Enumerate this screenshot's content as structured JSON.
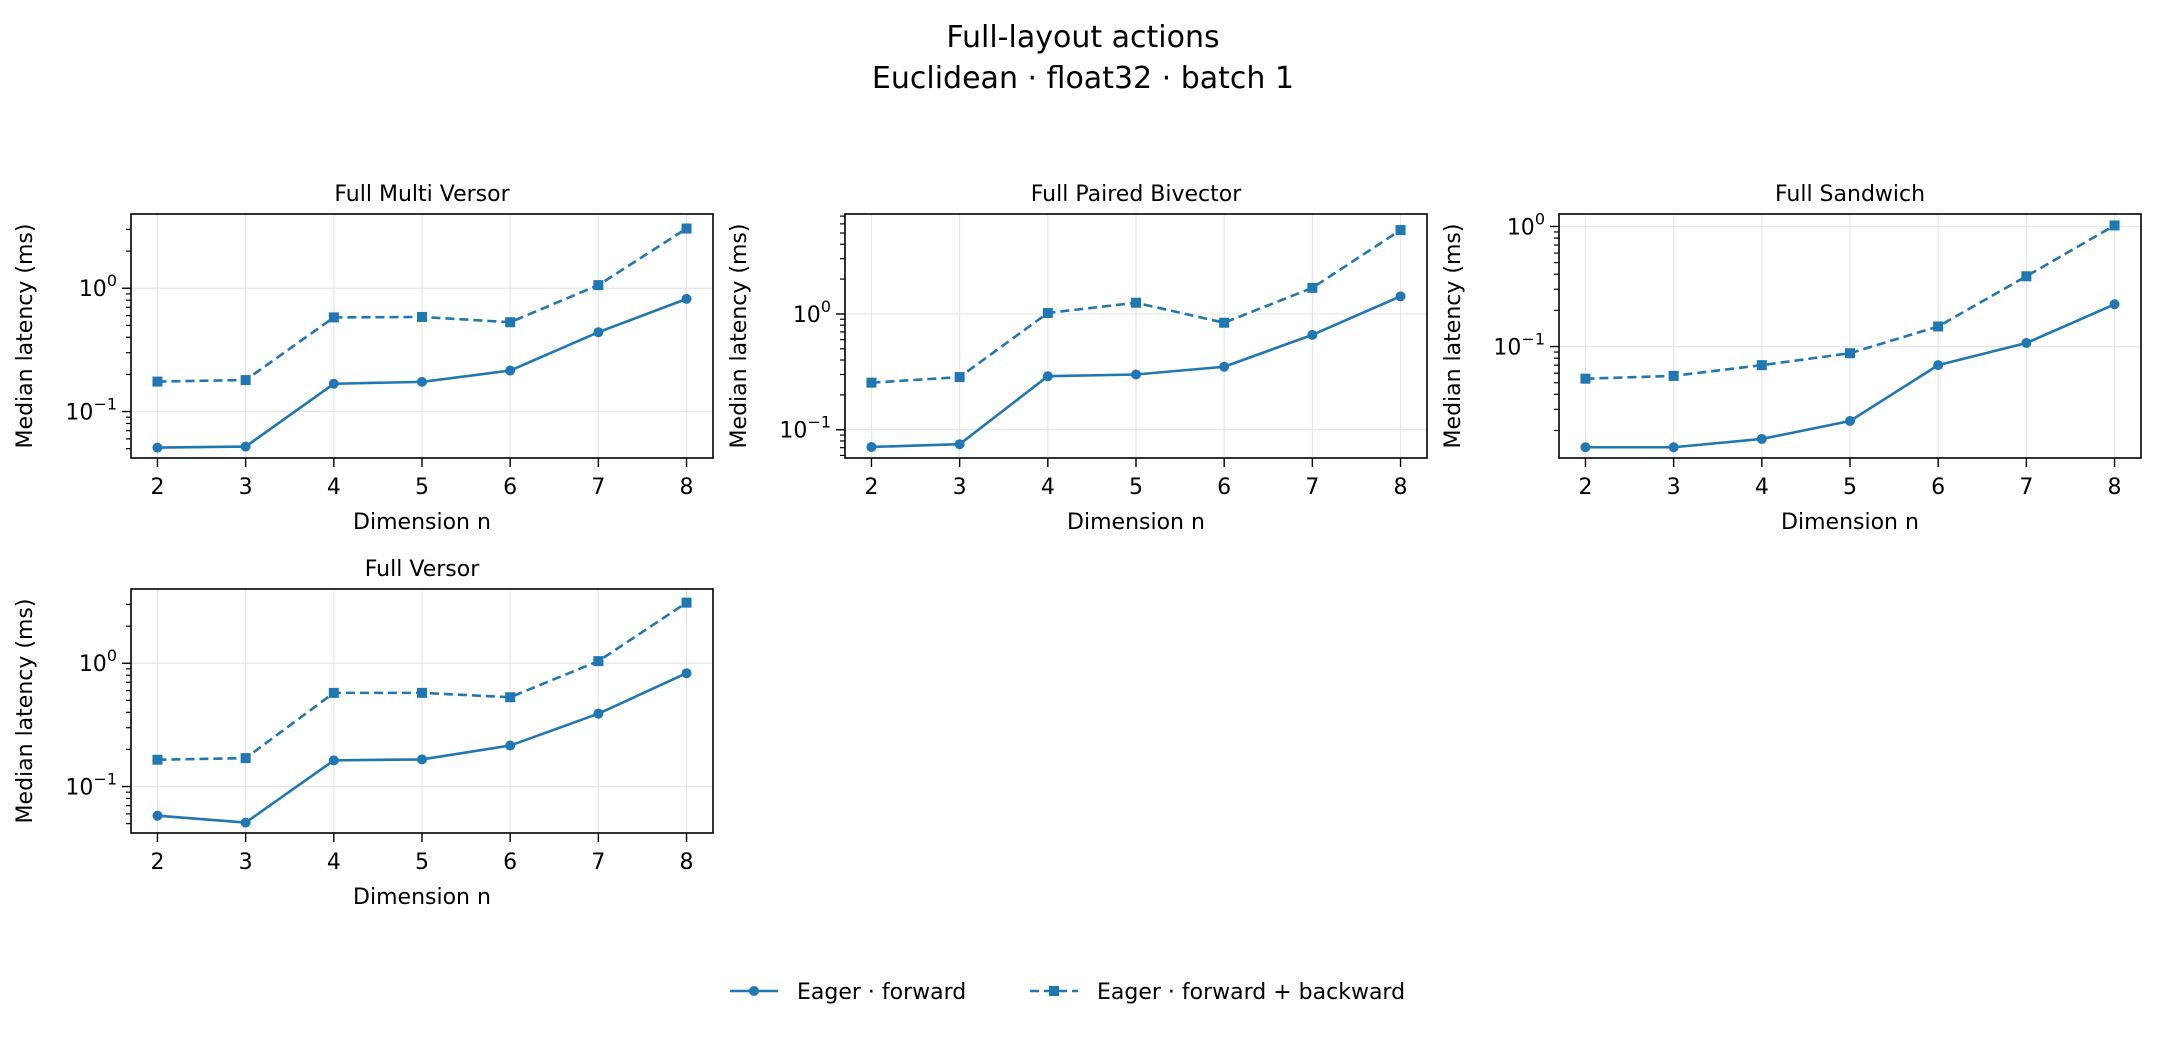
{
  "figure": {
    "title": "Full-layout actions",
    "subtitle": "Euclidean · float32 · batch 1"
  },
  "legend": {
    "position": "bottom-center",
    "entries": [
      {
        "label": "Eager · forward",
        "color": "#1f77b4",
        "linestyle": "solid",
        "marker": "circle"
      },
      {
        "label": "Eager · forward + backward",
        "color": "#1f77b4",
        "linestyle": "dashed",
        "marker": "square"
      }
    ]
  },
  "chart_data": [
    {
      "type": "line",
      "title": "Full Multi Versor",
      "xlabel": "Dimension n",
      "ylabel": "Median latency (ms)",
      "yscale": "log",
      "grid": true,
      "x": [
        2,
        3,
        4,
        5,
        6,
        7,
        8
      ],
      "xlim": [
        1.7,
        8.3
      ],
      "ylim": [
        0.042,
        4.0
      ],
      "yticks": [
        0.1,
        1
      ],
      "ytick_labels": [
        "10^-1",
        "10^0"
      ],
      "series": [
        {
          "name": "Eager · forward",
          "values": [
            0.051,
            0.052,
            0.168,
            0.174,
            0.215,
            0.44,
            0.82
          ]
        },
        {
          "name": "Eager · forward + backward",
          "values": [
            0.175,
            0.18,
            0.58,
            0.585,
            0.53,
            1.06,
            3.05
          ]
        }
      ]
    },
    {
      "type": "line",
      "title": "Full Paired Bivector",
      "xlabel": "Dimension n",
      "ylabel": "Median latency (ms)",
      "yscale": "log",
      "grid": true,
      "x": [
        2,
        3,
        4,
        5,
        6,
        7,
        8
      ],
      "xlim": [
        1.7,
        8.3
      ],
      "ylim": [
        0.057,
        7.3
      ],
      "yticks": [
        0.1,
        1
      ],
      "ytick_labels": [
        "10^-1",
        "10^0"
      ],
      "series": [
        {
          "name": "Eager · forward",
          "values": [
            0.071,
            0.075,
            0.29,
            0.3,
            0.35,
            0.66,
            1.42
          ]
        },
        {
          "name": "Eager · forward + backward",
          "values": [
            0.255,
            0.285,
            1.02,
            1.25,
            0.84,
            1.68,
            5.3
          ]
        }
      ]
    },
    {
      "type": "line",
      "title": "Full Sandwich",
      "xlabel": "Dimension n",
      "ylabel": "Median latency (ms)",
      "yscale": "log",
      "grid": true,
      "x": [
        2,
        3,
        4,
        5,
        6,
        7,
        8
      ],
      "xlim": [
        1.7,
        8.3
      ],
      "ylim": [
        0.0118,
        1.27
      ],
      "yticks": [
        0.1,
        1
      ],
      "ytick_labels": [
        "10^-1",
        "10^0"
      ],
      "series": [
        {
          "name": "Eager · forward",
          "values": [
            0.0145,
            0.0145,
            0.017,
            0.024,
            0.07,
            0.107,
            0.225
          ]
        },
        {
          "name": "Eager · forward + backward",
          "values": [
            0.054,
            0.057,
            0.07,
            0.088,
            0.147,
            0.385,
            1.02
          ]
        }
      ]
    },
    {
      "type": "line",
      "title": "Full Versor",
      "xlabel": "Dimension n",
      "ylabel": "Median latency (ms)",
      "yscale": "log",
      "grid": true,
      "x": [
        2,
        3,
        4,
        5,
        6,
        7,
        8
      ],
      "xlim": [
        1.7,
        8.3
      ],
      "ylim": [
        0.042,
        4.0
      ],
      "yticks": [
        0.1,
        1
      ],
      "ytick_labels": [
        "10^-1",
        "10^0"
      ],
      "series": [
        {
          "name": "Eager · forward",
          "values": [
            0.058,
            0.051,
            0.163,
            0.166,
            0.215,
            0.39,
            0.83
          ]
        },
        {
          "name": "Eager · forward + backward",
          "values": [
            0.165,
            0.17,
            0.575,
            0.575,
            0.53,
            1.04,
            3.1
          ]
        }
      ]
    }
  ]
}
